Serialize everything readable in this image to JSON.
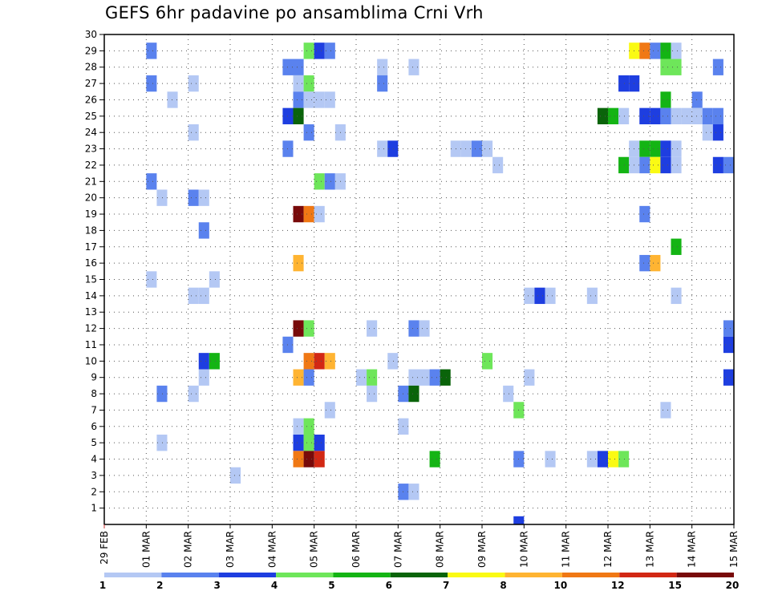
{
  "chart_data": {
    "type": "heatmap",
    "title": "GEFS 6hr padavine po ansamblima Crni Vrh",
    "xlabel": "",
    "ylabel": "",
    "x_tick_labels": [
      "29 FEB",
      "01 MAR",
      "02 MAR",
      "03 MAR",
      "04 MAR",
      "05 MAR",
      "06 MAR",
      "07 MAR",
      "08 MAR",
      "09 MAR",
      "10 MAR",
      "11 MAR",
      "12 MAR",
      "13 MAR",
      "14 MAR",
      "15 MAR"
    ],
    "y_tick_labels": [
      "1",
      "2",
      "3",
      "4",
      "5",
      "6",
      "7",
      "8",
      "9",
      "10",
      "11",
      "12",
      "13",
      "14",
      "15",
      "16",
      "17",
      "18",
      "19",
      "20",
      "21",
      "22",
      "23",
      "24",
      "25",
      "26",
      "27",
      "28",
      "29",
      "30"
    ],
    "xlim": [
      0,
      15
    ],
    "ylim": [
      0,
      30
    ],
    "grid": true,
    "colorbar": {
      "placement": "bottom",
      "bins": [
        {
          "color": "#b4c8f4",
          "label": "1"
        },
        {
          "color": "#5a82ee",
          "label": "2"
        },
        {
          "color": "#1e3ee0",
          "label": "3"
        },
        {
          "color": "#6ee65a",
          "label": "4"
        },
        {
          "color": "#14b414",
          "label": "5"
        },
        {
          "color": "#0a640a",
          "label": "6"
        },
        {
          "color": "#fafa14",
          "label": "7"
        },
        {
          "color": "#ffb432",
          "label": "8"
        },
        {
          "color": "#f07814",
          "label": "10"
        },
        {
          "color": "#d22814",
          "label": "12"
        },
        {
          "color": "#780a0a",
          "label": "15"
        },
        {
          "color": "",
          "label": "20"
        }
      ]
    },
    "cell_width_days": 0.25,
    "cells": [
      {
        "x": 1.0,
        "y": 29,
        "level": 2
      },
      {
        "x": 1.0,
        "y": 27,
        "level": 2
      },
      {
        "x": 1.0,
        "y": 21,
        "level": 2
      },
      {
        "x": 1.0,
        "y": 15,
        "level": 1
      },
      {
        "x": 1.25,
        "y": 20,
        "level": 1
      },
      {
        "x": 1.25,
        "y": 8,
        "level": 2
      },
      {
        "x": 1.25,
        "y": 5,
        "level": 1
      },
      {
        "x": 1.5,
        "y": 26,
        "level": 1
      },
      {
        "x": 2.0,
        "y": 27,
        "level": 1
      },
      {
        "x": 2.0,
        "y": 24,
        "level": 1
      },
      {
        "x": 2.0,
        "y": 20,
        "level": 2
      },
      {
        "x": 2.0,
        "y": 14,
        "level": 1
      },
      {
        "x": 2.0,
        "y": 8,
        "level": 1
      },
      {
        "x": 2.25,
        "y": 20,
        "level": 1
      },
      {
        "x": 2.25,
        "y": 18,
        "level": 2
      },
      {
        "x": 2.25,
        "y": 14,
        "level": 1
      },
      {
        "x": 2.25,
        "y": 10,
        "level": 3
      },
      {
        "x": 2.25,
        "y": 9,
        "level": 1
      },
      {
        "x": 2.5,
        "y": 15,
        "level": 1
      },
      {
        "x": 2.5,
        "y": 10,
        "level": 5
      },
      {
        "x": 3.0,
        "y": 3,
        "level": 1
      },
      {
        "x": 4.25,
        "y": 28,
        "level": 2
      },
      {
        "x": 4.25,
        "y": 25,
        "level": 3
      },
      {
        "x": 4.25,
        "y": 23,
        "level": 2
      },
      {
        "x": 4.25,
        "y": 11,
        "level": 2
      },
      {
        "x": 4.5,
        "y": 28,
        "level": 2
      },
      {
        "x": 4.5,
        "y": 27,
        "level": 1
      },
      {
        "x": 4.5,
        "y": 26,
        "level": 2
      },
      {
        "x": 4.5,
        "y": 25,
        "level": 6
      },
      {
        "x": 4.5,
        "y": 19,
        "level": 11
      },
      {
        "x": 4.5,
        "y": 16,
        "level": 8
      },
      {
        "x": 4.5,
        "y": 12,
        "level": 11
      },
      {
        "x": 4.5,
        "y": 9,
        "level": 8
      },
      {
        "x": 4.5,
        "y": 6,
        "level": 1
      },
      {
        "x": 4.5,
        "y": 5,
        "level": 3
      },
      {
        "x": 4.5,
        "y": 4,
        "level": 9
      },
      {
        "x": 4.75,
        "y": 29,
        "level": 4
      },
      {
        "x": 4.75,
        "y": 27,
        "level": 4
      },
      {
        "x": 4.75,
        "y": 26,
        "level": 1
      },
      {
        "x": 4.75,
        "y": 24,
        "level": 2
      },
      {
        "x": 4.75,
        "y": 19,
        "level": 9
      },
      {
        "x": 4.75,
        "y": 12,
        "level": 4
      },
      {
        "x": 4.75,
        "y": 10,
        "level": 9
      },
      {
        "x": 4.75,
        "y": 9,
        "level": 2
      },
      {
        "x": 4.75,
        "y": 6,
        "level": 4
      },
      {
        "x": 4.75,
        "y": 5,
        "level": 4
      },
      {
        "x": 4.75,
        "y": 4,
        "level": 11
      },
      {
        "x": 5.0,
        "y": 29,
        "level": 3
      },
      {
        "x": 5.0,
        "y": 26,
        "level": 1
      },
      {
        "x": 5.0,
        "y": 21,
        "level": 4
      },
      {
        "x": 5.0,
        "y": 19,
        "level": 1
      },
      {
        "x": 5.0,
        "y": 10,
        "level": 10
      },
      {
        "x": 5.0,
        "y": 5,
        "level": 3
      },
      {
        "x": 5.0,
        "y": 4,
        "level": 10
      },
      {
        "x": 5.25,
        "y": 29,
        "level": 2
      },
      {
        "x": 5.25,
        "y": 26,
        "level": 1
      },
      {
        "x": 5.25,
        "y": 21,
        "level": 2
      },
      {
        "x": 5.25,
        "y": 10,
        "level": 8
      },
      {
        "x": 5.25,
        "y": 7,
        "level": 1
      },
      {
        "x": 5.5,
        "y": 24,
        "level": 1
      },
      {
        "x": 5.5,
        "y": 21,
        "level": 1
      },
      {
        "x": 6.0,
        "y": 9,
        "level": 1
      },
      {
        "x": 6.25,
        "y": 12,
        "level": 1
      },
      {
        "x": 6.25,
        "y": 9,
        "level": 4
      },
      {
        "x": 6.25,
        "y": 8,
        "level": 1
      },
      {
        "x": 6.5,
        "y": 28,
        "level": 1
      },
      {
        "x": 6.5,
        "y": 27,
        "level": 2
      },
      {
        "x": 6.5,
        "y": 23,
        "level": 1
      },
      {
        "x": 6.75,
        "y": 23,
        "level": 3
      },
      {
        "x": 6.75,
        "y": 10,
        "level": 1
      },
      {
        "x": 7.0,
        "y": 8,
        "level": 2
      },
      {
        "x": 7.0,
        "y": 6,
        "level": 1
      },
      {
        "x": 7.0,
        "y": 2,
        "level": 2
      },
      {
        "x": 7.25,
        "y": 28,
        "level": 1
      },
      {
        "x": 7.25,
        "y": 12,
        "level": 2
      },
      {
        "x": 7.25,
        "y": 9,
        "level": 1
      },
      {
        "x": 7.25,
        "y": 8,
        "level": 6
      },
      {
        "x": 7.25,
        "y": 2,
        "level": 1
      },
      {
        "x": 7.5,
        "y": 12,
        "level": 1
      },
      {
        "x": 7.5,
        "y": 9,
        "level": 1
      },
      {
        "x": 7.75,
        "y": 9,
        "level": 2
      },
      {
        "x": 7.75,
        "y": 4,
        "level": 5
      },
      {
        "x": 8.0,
        "y": 9,
        "level": 6
      },
      {
        "x": 8.25,
        "y": 23,
        "level": 1
      },
      {
        "x": 8.5,
        "y": 23,
        "level": 1
      },
      {
        "x": 8.75,
        "y": 23,
        "level": 2
      },
      {
        "x": 9.0,
        "y": 23,
        "level": 1
      },
      {
        "x": 9.0,
        "y": 10,
        "level": 4
      },
      {
        "x": 9.25,
        "y": 22,
        "level": 1
      },
      {
        "x": 9.5,
        "y": 8,
        "level": 1
      },
      {
        "x": 9.75,
        "y": 7,
        "level": 4
      },
      {
        "x": 9.75,
        "y": 4,
        "level": 2
      },
      {
        "x": 9.75,
        "y": 0,
        "level": 3
      },
      {
        "x": 10.0,
        "y": 14,
        "level": 1
      },
      {
        "x": 10.0,
        "y": 9,
        "level": 1
      },
      {
        "x": 10.25,
        "y": 14,
        "level": 3
      },
      {
        "x": 10.5,
        "y": 14,
        "level": 1
      },
      {
        "x": 10.5,
        "y": 4,
        "level": 1
      },
      {
        "x": 11.5,
        "y": 14,
        "level": 1
      },
      {
        "x": 11.5,
        "y": 4,
        "level": 1
      },
      {
        "x": 11.75,
        "y": 25,
        "level": 6
      },
      {
        "x": 11.75,
        "y": 4,
        "level": 3
      },
      {
        "x": 12.0,
        "y": 25,
        "level": 5
      },
      {
        "x": 12.0,
        "y": 4,
        "level": 7
      },
      {
        "x": 12.25,
        "y": 25,
        "level": 1
      },
      {
        "x": 12.25,
        "y": 22,
        "level": 5
      },
      {
        "x": 12.25,
        "y": 27,
        "level": 3
      },
      {
        "x": 12.25,
        "y": 4,
        "level": 4
      },
      {
        "x": 12.5,
        "y": 29,
        "level": 7
      },
      {
        "x": 12.5,
        "y": 27,
        "level": 3
      },
      {
        "x": 12.5,
        "y": 23,
        "level": 1
      },
      {
        "x": 12.5,
        "y": 22,
        "level": 1
      },
      {
        "x": 12.75,
        "y": 29,
        "level": 9
      },
      {
        "x": 12.75,
        "y": 25,
        "level": 3
      },
      {
        "x": 12.75,
        "y": 23,
        "level": 5
      },
      {
        "x": 12.75,
        "y": 22,
        "level": 2
      },
      {
        "x": 12.75,
        "y": 19,
        "level": 2
      },
      {
        "x": 12.75,
        "y": 16,
        "level": 2
      },
      {
        "x": 13.0,
        "y": 29,
        "level": 2
      },
      {
        "x": 13.0,
        "y": 25,
        "level": 3
      },
      {
        "x": 13.0,
        "y": 23,
        "level": 5
      },
      {
        "x": 13.0,
        "y": 22,
        "level": 7
      },
      {
        "x": 13.0,
        "y": 16,
        "level": 8
      },
      {
        "x": 13.25,
        "y": 29,
        "level": 5
      },
      {
        "x": 13.25,
        "y": 28,
        "level": 4
      },
      {
        "x": 13.25,
        "y": 26,
        "level": 5
      },
      {
        "x": 13.25,
        "y": 25,
        "level": 2
      },
      {
        "x": 13.25,
        "y": 23,
        "level": 3
      },
      {
        "x": 13.25,
        "y": 22,
        "level": 3
      },
      {
        "x": 13.25,
        "y": 7,
        "level": 1
      },
      {
        "x": 13.5,
        "y": 29,
        "level": 1
      },
      {
        "x": 13.5,
        "y": 28,
        "level": 4
      },
      {
        "x": 13.5,
        "y": 25,
        "level": 1
      },
      {
        "x": 13.5,
        "y": 23,
        "level": 1
      },
      {
        "x": 13.5,
        "y": 22,
        "level": 1
      },
      {
        "x": 13.5,
        "y": 17,
        "level": 5
      },
      {
        "x": 13.5,
        "y": 14,
        "level": 1
      },
      {
        "x": 13.75,
        "y": 25,
        "level": 1
      },
      {
        "x": 14.0,
        "y": 26,
        "level": 2
      },
      {
        "x": 14.0,
        "y": 25,
        "level": 1
      },
      {
        "x": 14.25,
        "y": 25,
        "level": 2
      },
      {
        "x": 14.25,
        "y": 24,
        "level": 1
      },
      {
        "x": 14.5,
        "y": 28,
        "level": 2
      },
      {
        "x": 14.5,
        "y": 25,
        "level": 2
      },
      {
        "x": 14.5,
        "y": 24,
        "level": 3
      },
      {
        "x": 14.5,
        "y": 22,
        "level": 3
      },
      {
        "x": 14.75,
        "y": 22,
        "level": 2
      },
      {
        "x": 14.75,
        "y": 12,
        "level": 2
      },
      {
        "x": 14.75,
        "y": 11,
        "level": 3
      },
      {
        "x": 14.75,
        "y": 9,
        "level": 3
      }
    ]
  }
}
